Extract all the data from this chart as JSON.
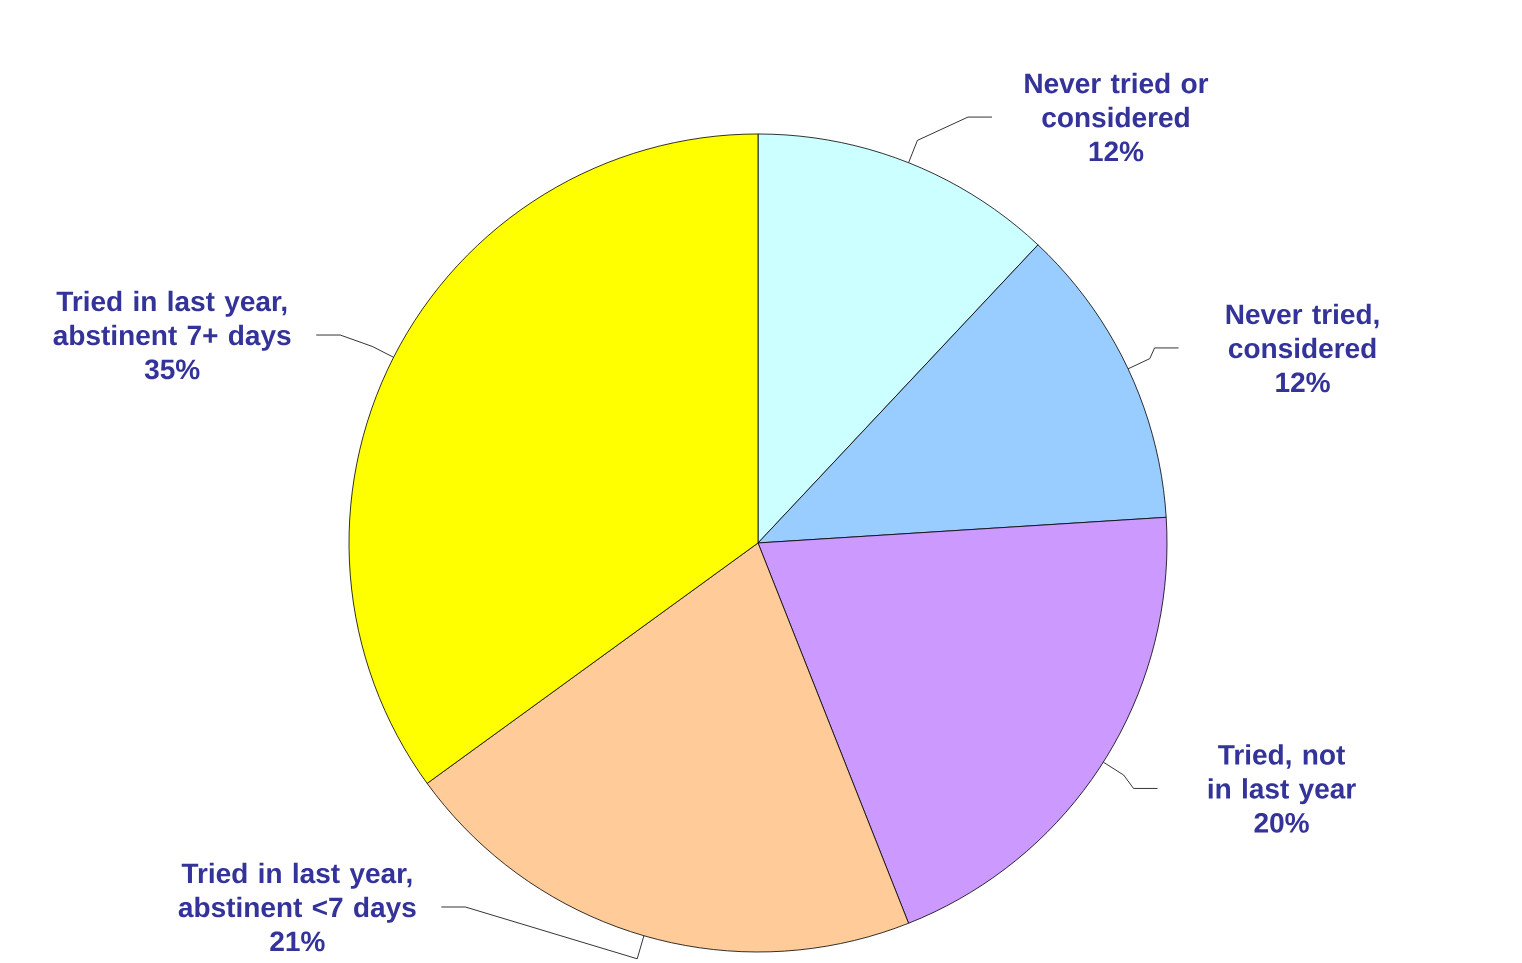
{
  "chart_data": {
    "type": "pie",
    "categories": [
      "Never tried or considered",
      "Never tried, considered",
      "Tried, not in last year",
      "Tried in last year, abstinent <7 days",
      "Tried in last year, abstinent 7+ days"
    ],
    "values": [
      12,
      12,
      20,
      21,
      35
    ],
    "value_labels": [
      "12%",
      "12%",
      "20%",
      "21%",
      "35%"
    ],
    "colors": [
      "#ccffff",
      "#99ccff",
      "#cc99ff",
      "#ffcc99",
      "#ffff00"
    ]
  }
}
